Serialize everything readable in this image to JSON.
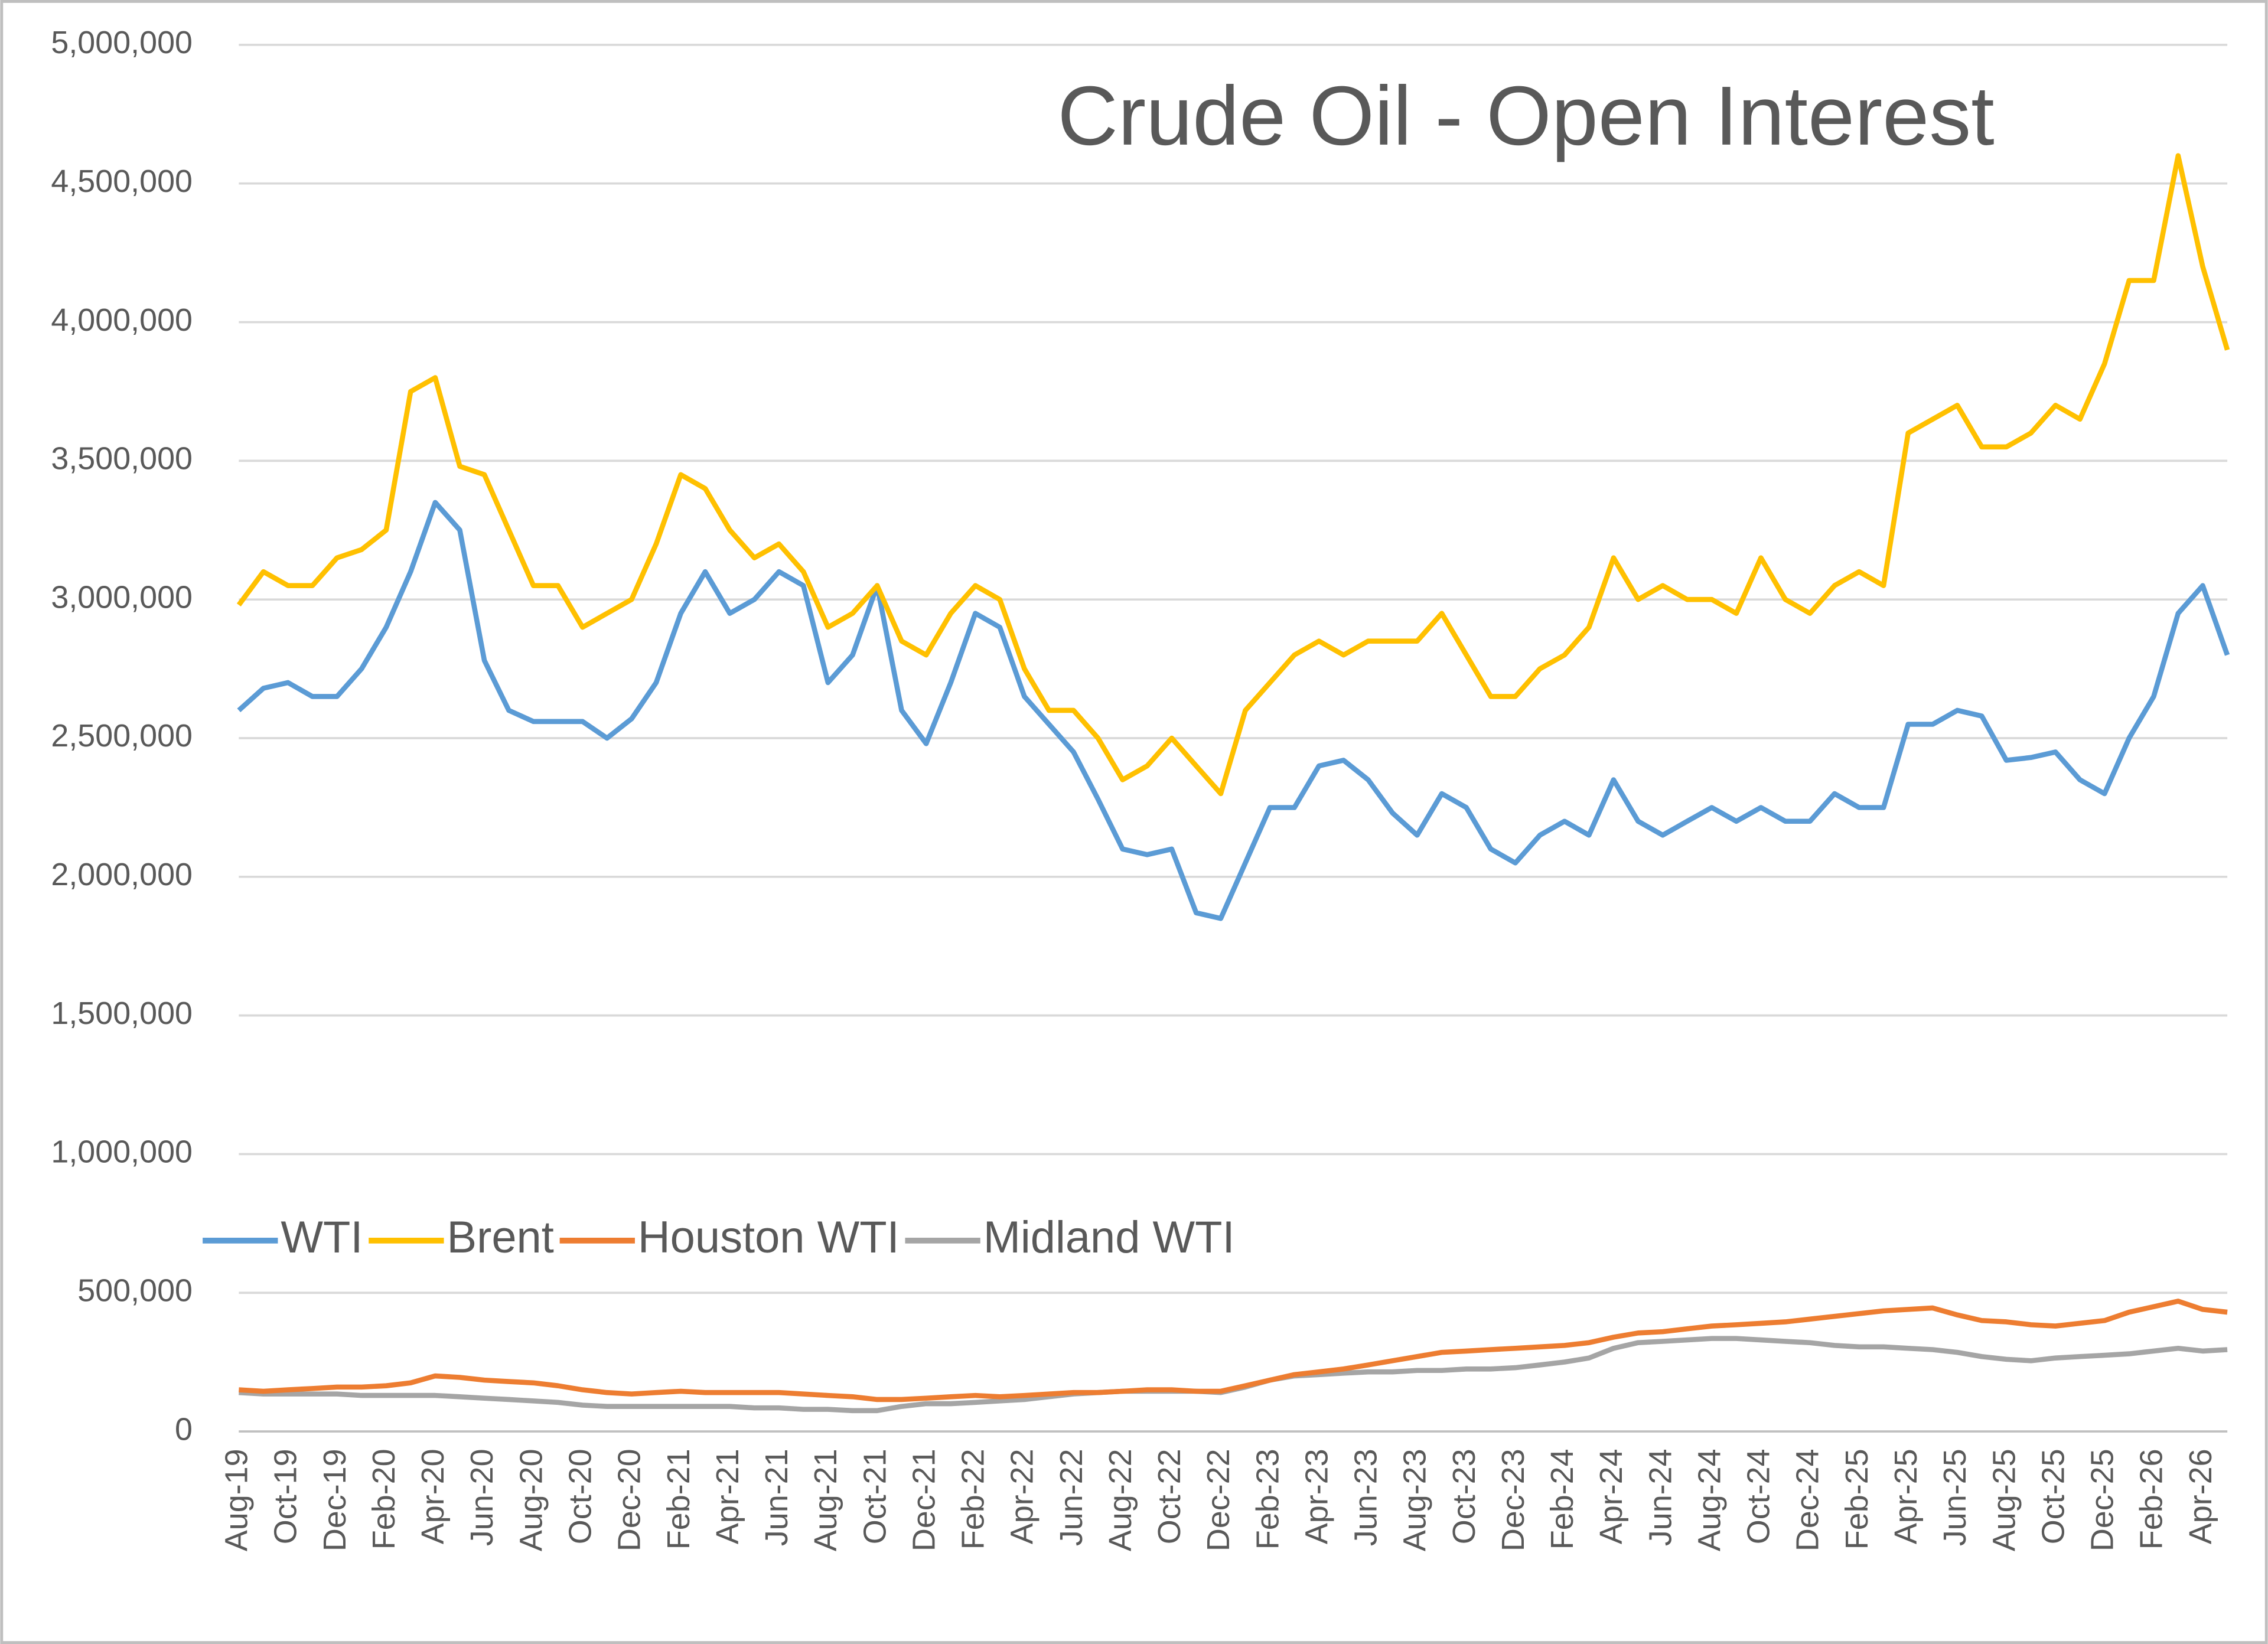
{
  "chart_data": {
    "type": "line",
    "title": "Crude Oil - Open Interest",
    "categories": [
      "Aug-19",
      null,
      "Oct-19",
      null,
      "Dec-19",
      null,
      "Feb-20",
      null,
      "Apr-20",
      null,
      "Jun-20",
      null,
      "Aug-20",
      null,
      "Oct-20",
      null,
      "Dec-20",
      null,
      "Feb-21",
      null,
      "Apr-21",
      null,
      "Jun-21",
      null,
      "Aug-21",
      null,
      "Oct-21",
      null,
      "Dec-21",
      null,
      "Feb-22",
      null,
      "Apr-22",
      null,
      "Jun-22",
      null,
      "Aug-22",
      null,
      "Oct-22",
      null,
      "Dec-22",
      null,
      "Feb-23",
      null,
      "Apr-23",
      null,
      "Jun-23",
      null,
      "Aug-23",
      null,
      "Oct-23",
      null,
      "Dec-23",
      null,
      "Feb-24",
      null,
      "Apr-24",
      null,
      "Jun-24",
      null,
      "Aug-24",
      null,
      "Oct-24",
      null,
      "Dec-24",
      null,
      "Feb-25",
      null,
      "Apr-25",
      null,
      "Jun-25",
      null,
      "Aug-25",
      null,
      "Oct-25",
      null,
      "Dec-25",
      null,
      "Feb-26",
      null,
      "Apr-26",
      null
    ],
    "series": [
      {
        "name": "WTI",
        "color": "#5b9bd5",
        "values": [
          2600000,
          2680000,
          2700000,
          2650000,
          2650000,
          2750000,
          2900000,
          3100000,
          3350000,
          3250000,
          2780000,
          2600000,
          2560000,
          2560000,
          2560000,
          2500000,
          2570000,
          2700000,
          2950000,
          3100000,
          2950000,
          3000000,
          3100000,
          3050000,
          2700000,
          2800000,
          3050000,
          2600000,
          2480000,
          2700000,
          2950000,
          2900000,
          2650000,
          2550000,
          2450000,
          2280000,
          2100000,
          2080000,
          2100000,
          1870000,
          1850000,
          2050000,
          2250000,
          2250000,
          2400000,
          2420000,
          2350000,
          2230000,
          2150000,
          2300000,
          2250000,
          2100000,
          2050000,
          2150000,
          2200000,
          2150000,
          2350000,
          2200000,
          2150000,
          2200000,
          2250000,
          2200000,
          2250000,
          2200000,
          2200000,
          2300000,
          2250000,
          2250000,
          2550000,
          2550000,
          2600000,
          2580000,
          2420000,
          2430000,
          2450000,
          2350000,
          2300000,
          2500000,
          2650000,
          2950000,
          3050000,
          2800000
        ]
      },
      {
        "name": "Brent",
        "color": "#ffc000",
        "values": [
          2980000,
          3100000,
          3050000,
          3050000,
          3150000,
          3180000,
          3250000,
          3750000,
          3800000,
          3480000,
          3450000,
          3250000,
          3050000,
          3050000,
          2900000,
          2950000,
          3000000,
          3200000,
          3450000,
          3400000,
          3250000,
          3150000,
          3200000,
          3100000,
          2900000,
          2950000,
          3050000,
          2850000,
          2800000,
          2950000,
          3050000,
          3000000,
          2750000,
          2600000,
          2600000,
          2500000,
          2350000,
          2400000,
          2500000,
          2400000,
          2300000,
          2600000,
          2700000,
          2800000,
          2850000,
          2800000,
          2850000,
          2850000,
          2850000,
          2950000,
          2800000,
          2650000,
          2650000,
          2750000,
          2800000,
          2900000,
          3150000,
          3000000,
          3050000,
          3000000,
          3000000,
          2950000,
          3150000,
          3000000,
          2950000,
          3050000,
          3100000,
          3050000,
          3600000,
          3650000,
          3700000,
          3550000,
          3550000,
          3600000,
          3700000,
          3650000,
          3850000,
          4150000,
          4150000,
          4600000,
          4200000,
          3900000
        ]
      },
      {
        "name": "Houston WTI",
        "color": "#ed7d31",
        "values": [
          150000,
          145000,
          150000,
          155000,
          160000,
          160000,
          165000,
          175000,
          200000,
          195000,
          185000,
          180000,
          175000,
          165000,
          150000,
          140000,
          135000,
          140000,
          145000,
          140000,
          140000,
          140000,
          140000,
          135000,
          130000,
          125000,
          115000,
          115000,
          120000,
          125000,
          130000,
          125000,
          130000,
          135000,
          140000,
          140000,
          145000,
          150000,
          150000,
          145000,
          145000,
          165000,
          185000,
          205000,
          215000,
          225000,
          240000,
          255000,
          270000,
          285000,
          290000,
          295000,
          300000,
          305000,
          310000,
          320000,
          340000,
          355000,
          360000,
          370000,
          380000,
          385000,
          390000,
          395000,
          405000,
          415000,
          425000,
          435000,
          440000,
          445000,
          420000,
          400000,
          395000,
          385000,
          380000,
          390000,
          400000,
          430000,
          450000,
          470000,
          440000,
          430000
        ]
      },
      {
        "name": "Midland WTI",
        "color": "#a5a5a5",
        "values": [
          140000,
          135000,
          135000,
          135000,
          135000,
          130000,
          130000,
          130000,
          130000,
          125000,
          120000,
          115000,
          110000,
          105000,
          95000,
          90000,
          90000,
          90000,
          90000,
          90000,
          90000,
          85000,
          85000,
          80000,
          80000,
          75000,
          75000,
          90000,
          100000,
          100000,
          105000,
          110000,
          115000,
          125000,
          135000,
          140000,
          145000,
          145000,
          145000,
          145000,
          140000,
          160000,
          185000,
          200000,
          205000,
          210000,
          215000,
          215000,
          220000,
          220000,
          225000,
          225000,
          230000,
          240000,
          250000,
          265000,
          300000,
          320000,
          325000,
          330000,
          335000,
          335000,
          330000,
          325000,
          320000,
          310000,
          305000,
          305000,
          300000,
          295000,
          285000,
          270000,
          260000,
          255000,
          265000,
          270000,
          275000,
          280000,
          290000,
          300000,
          290000,
          295000
        ]
      }
    ],
    "ylim": [
      0,
      5000000
    ],
    "yticks": [
      0,
      {
        "value": 500000,
        "label": "500,000"
      },
      {
        "value": 1000000,
        "label": "1,000,000"
      },
      {
        "value": 1500000,
        "label": "1,500,000"
      },
      {
        "value": 2000000,
        "label": "2,000,000"
      },
      {
        "value": 2500000,
        "label": "2,500,000"
      },
      {
        "value": 3000000,
        "label": "3,000,000"
      },
      {
        "value": 3500000,
        "label": "3,500,000"
      },
      {
        "value": 4000000,
        "label": "4,000,000"
      },
      {
        "value": 4500000,
        "label": "4,500,000"
      },
      {
        "value": 5000000,
        "label": "5,000,000"
      }
    ],
    "grid": true,
    "legend": "left"
  }
}
